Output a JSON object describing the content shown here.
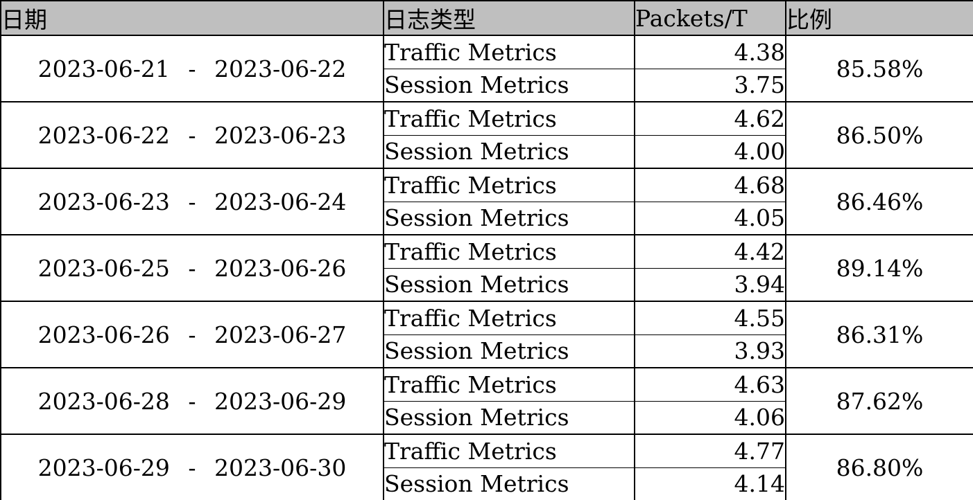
{
  "colors": {
    "header_bg": "#bfbfbf",
    "border": "#000000",
    "text": "#000000"
  },
  "table": {
    "headers": {
      "date": "日期",
      "log_type": "日志类型",
      "packets": "Packets/T",
      "ratio": "比例"
    },
    "log_types": {
      "traffic": "Traffic Metrics",
      "session": "Session Metrics"
    },
    "rows": [
      {
        "date": "2023-06-21 - 2023-06-22",
        "traffic": "4.38",
        "session": "3.75",
        "ratio": "85.58%"
      },
      {
        "date": "2023-06-22 - 2023-06-23",
        "traffic": "4.62",
        "session": "4.00",
        "ratio": "86.50%"
      },
      {
        "date": "2023-06-23 - 2023-06-24",
        "traffic": "4.68",
        "session": "4.05",
        "ratio": "86.46%"
      },
      {
        "date": "2023-06-25 - 2023-06-26",
        "traffic": "4.42",
        "session": "3.94",
        "ratio": "89.14%"
      },
      {
        "date": "2023-06-26 - 2023-06-27",
        "traffic": "4.55",
        "session": "3.93",
        "ratio": "86.31%"
      },
      {
        "date": "2023-06-28 - 2023-06-29",
        "traffic": "4.63",
        "session": "4.06",
        "ratio": "87.62%"
      },
      {
        "date": "2023-06-29 - 2023-06-30",
        "traffic": "4.77",
        "session": "4.14",
        "ratio": "86.80%"
      }
    ]
  }
}
